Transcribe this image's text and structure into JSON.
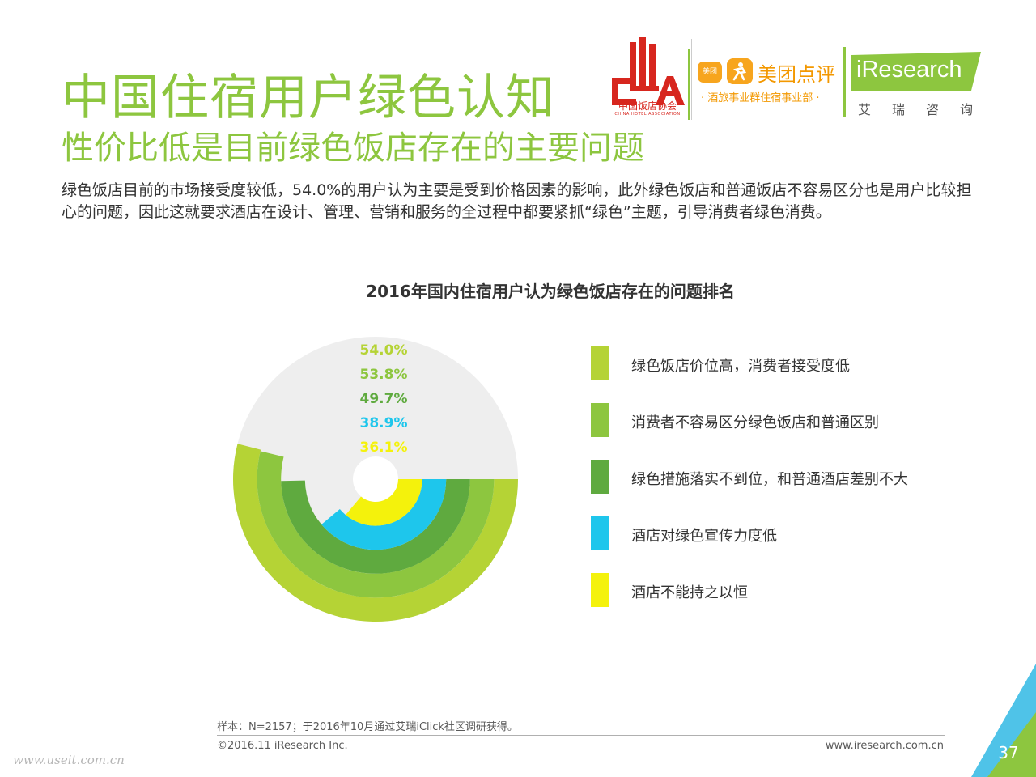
{
  "header": {
    "title": "中国住宿用户绿色认知",
    "subtitle": "性价比低是目前绿色饭店存在的主要问题"
  },
  "intro": "绿色饭店目前的市场接受度较低，54.0%的用户认为主要是受到价格因素的影响，此外绿色饭店和普通饭店不容易区分也是用户比较担心的问题，因此这就要求酒店在设计、管理、营销和服务的全过程中都要紧抓“绿色”主题，引导消费者绿色消费。",
  "logos": {
    "cha": {
      "name": "中国饭店协会",
      "en": "CHINA HOTEL ASSOCIATION",
      "color": "#d7261e"
    },
    "meituan": {
      "badge": "美团",
      "name": "美团点评",
      "sub": "· 酒旅事业群住宿事业部 ·",
      "color": "#f39800"
    },
    "iresearch": {
      "name": "iResearch",
      "cn": "艾瑞咨询",
      "color": "#8dc63f"
    }
  },
  "chart_data": {
    "type": "radial-bar",
    "title": "2016年国内住宿用户认为绿色饭店存在的问题排名",
    "unit": "%",
    "max": 100,
    "categories": [
      "绿色饭店价位高，消费者接受度低",
      "消费者不容易区分绿色饭店和普通区别",
      "绿色措施落实不到位，和普通酒店差别不大",
      "酒店对绿色宣传力度低",
      "酒店不能持之以恒"
    ],
    "values": [
      54.0,
      53.8,
      49.7,
      38.9,
      36.1
    ],
    "labels": [
      "54.0%",
      "53.8%",
      "49.7%",
      "38.9%",
      "36.1%"
    ],
    "colors": [
      "#b5d335",
      "#8dc63f",
      "#5faa3f",
      "#1ec6ec",
      "#f4f20c"
    ],
    "label_colors": [
      "#b5d335",
      "#8dc63f",
      "#5faa3f",
      "#1ec6ec",
      "#f4f20c"
    ],
    "track_color": "#eeeeee",
    "legend_position": "right"
  },
  "footer": {
    "note": "样本：N=2157；于2016年10月通过艾瑞iClick社区调研获得。",
    "copyright": "©2016.11 iResearch Inc.",
    "website": "www.iresearch.com.cn",
    "page_number": "37",
    "watermark": "www.useit.com.cn"
  }
}
